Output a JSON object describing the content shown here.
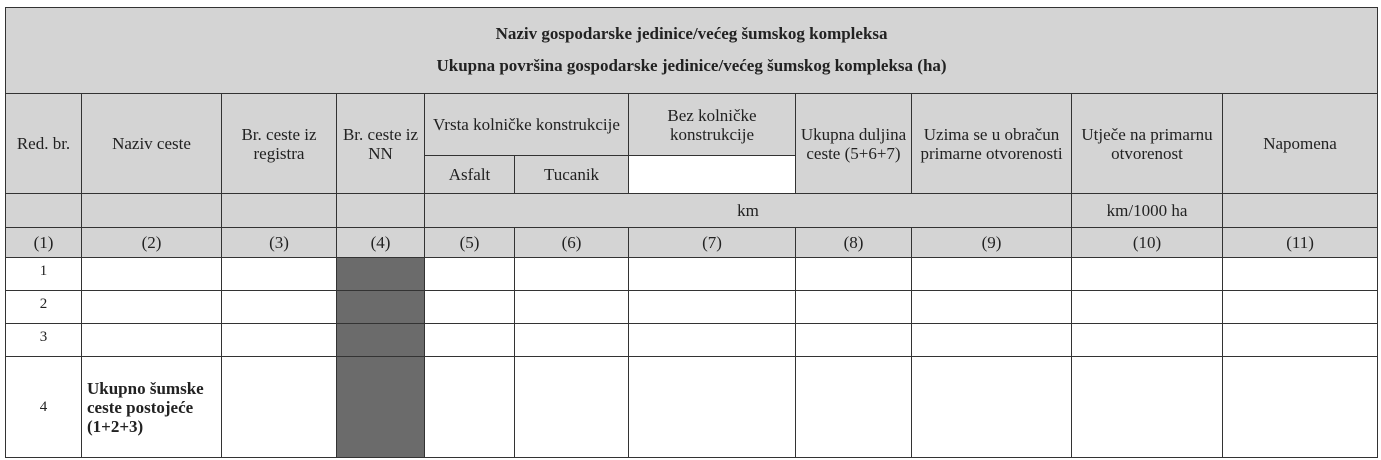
{
  "title": {
    "line1": "Naziv gospodarske jedinice/većeg šumskog kompleksa",
    "line2": "Ukupna površina gospodarske jedinice/većeg šumskog kompleksa (ha)"
  },
  "headers": {
    "red_br": "Red. br.",
    "naziv_ceste": "Naziv ceste",
    "br_registra": "Br. ceste iz registra",
    "br_nn": "Br. ceste iz NN",
    "vrsta": "Vrsta kolničke konstrukcije",
    "asfalt": "Asfalt",
    "tucanik": "Tucanik",
    "bez": "Bez kolničke konstrukcije",
    "ukupna": "Ukupna duljina ceste (5+6+7)",
    "uzima": "Uzima se u obračun primarne otvorenosti",
    "utjece": "Utječe na primarnu otvorenost",
    "napomena": "Napomena"
  },
  "units": {
    "km": "km",
    "km_ha": "km/1000 ha"
  },
  "column_numbers": [
    "(1)",
    "(2)",
    "(3)",
    "(4)",
    "(5)",
    "(6)",
    "(7)",
    "(8)",
    "(9)",
    "(10)",
    "(11)"
  ],
  "rows": [
    {
      "num": "1",
      "name": ""
    },
    {
      "num": "2",
      "name": ""
    },
    {
      "num": "3",
      "name": ""
    },
    {
      "num": "4",
      "name": "Ukupno šumske ceste postojeće (1+2+3)"
    }
  ]
}
